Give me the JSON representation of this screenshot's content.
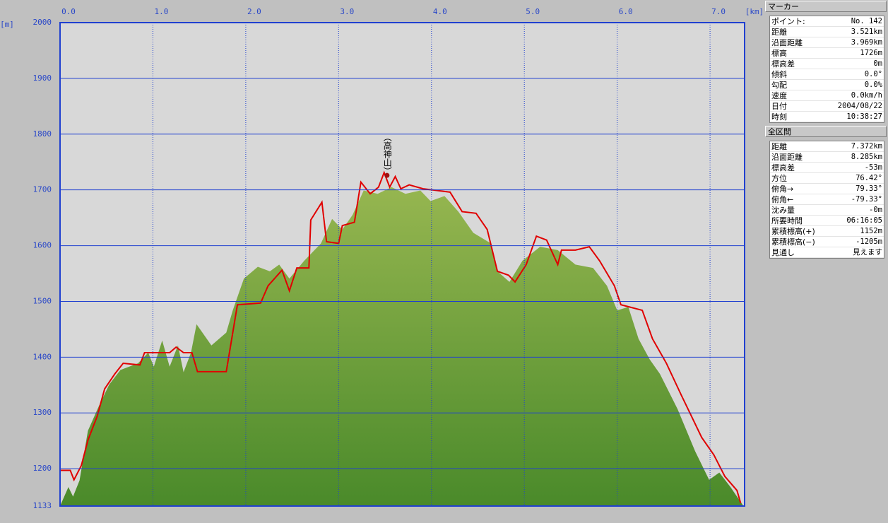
{
  "chart_data": {
    "type": "elevation-profile",
    "x_label": "[km]",
    "y_label": "[m]",
    "xlim": [
      0,
      7.372
    ],
    "ylim": [
      1133,
      2000
    ],
    "xticks": [
      {
        "value": 0,
        "label": "0.0"
      },
      {
        "value": 1,
        "label": "1.0"
      },
      {
        "value": 2,
        "label": "2.0"
      },
      {
        "value": 3,
        "label": "3.0"
      },
      {
        "value": 4,
        "label": "4.0"
      },
      {
        "value": 5,
        "label": "5.0"
      },
      {
        "value": 6,
        "label": "6.0"
      },
      {
        "value": 7,
        "label": "7.0"
      }
    ],
    "yticks": [
      1133,
      1200,
      1300,
      1400,
      1500,
      1600,
      1700,
      1800,
      1900,
      2000
    ],
    "grid": true,
    "series": [
      {
        "type": "area",
        "color": "#6f9a3a",
        "x": [
          0,
          0.09,
          0.14,
          0.21,
          0.3,
          0.42,
          0.53,
          0.65,
          0.84,
          0.95,
          1.01,
          1.1,
          1.18,
          1.27,
          1.33,
          1.41,
          1.47,
          1.63,
          1.79,
          1.86,
          1.98,
          2.13,
          2.26,
          2.36,
          2.47,
          2.63,
          2.81,
          2.93,
          3.04,
          3.15,
          3.27,
          3.42,
          3.57,
          3.72,
          3.88,
          3.99,
          4.14,
          4.29,
          4.45,
          4.64,
          4.71,
          4.84,
          4.98,
          5.17,
          5.36,
          5.55,
          5.74,
          5.89,
          6.0,
          6.12,
          6.23,
          6.35,
          6.46,
          6.65,
          6.84,
          6.99,
          7.1,
          7.22,
          7.36
        ],
        "values": [
          1133,
          1167,
          1150,
          1179,
          1268,
          1313,
          1351,
          1377,
          1389,
          1408,
          1383,
          1430,
          1383,
          1421,
          1373,
          1408,
          1459,
          1421,
          1444,
          1484,
          1541,
          1562,
          1554,
          1566,
          1541,
          1573,
          1604,
          1648,
          1629,
          1655,
          1699,
          1693,
          1705,
          1693,
          1699,
          1680,
          1689,
          1661,
          1623,
          1604,
          1554,
          1535,
          1573,
          1598,
          1592,
          1566,
          1560,
          1528,
          1484,
          1490,
          1433,
          1396,
          1370,
          1307,
          1231,
          1180,
          1193,
          1167,
          1133
        ]
      },
      {
        "type": "line",
        "color": "#e00000",
        "x": [
          0,
          0.11,
          0.15,
          0.23,
          0.3,
          0.4,
          0.48,
          0.59,
          0.68,
          0.86,
          0.91,
          1.18,
          1.25,
          1.33,
          1.42,
          1.48,
          1.79,
          1.91,
          2.16,
          2.24,
          2.39,
          2.47,
          2.55,
          2.68,
          2.7,
          2.82,
          2.87,
          3.0,
          3.04,
          3.17,
          3.24,
          3.34,
          3.43,
          3.49,
          3.55,
          3.61,
          3.67,
          3.76,
          3.91,
          4.06,
          4.2,
          4.33,
          4.48,
          4.6,
          4.71,
          4.83,
          4.9,
          5.02,
          5.13,
          5.24,
          5.36,
          5.4,
          5.55,
          5.7,
          5.81,
          5.97,
          6.04,
          6.27,
          6.38,
          6.53,
          6.69,
          6.8,
          6.91,
          7.04,
          7.16,
          7.29,
          7.33
        ],
        "values": [
          1197,
          1197,
          1180,
          1206,
          1251,
          1294,
          1343,
          1370,
          1389,
          1386,
          1408,
          1408,
          1418,
          1408,
          1408,
          1374,
          1374,
          1494,
          1497,
          1528,
          1556,
          1519,
          1560,
          1560,
          1646,
          1678,
          1607,
          1604,
          1636,
          1642,
          1714,
          1693,
          1705,
          1731,
          1705,
          1724,
          1702,
          1709,
          1702,
          1699,
          1696,
          1661,
          1658,
          1629,
          1554,
          1547,
          1535,
          1566,
          1617,
          1610,
          1566,
          1592,
          1592,
          1598,
          1573,
          1528,
          1494,
          1484,
          1433,
          1389,
          1332,
          1294,
          1256,
          1225,
          1186,
          1161,
          1138
        ]
      }
    ],
    "marker": {
      "x": 3.521,
      "y": 1726,
      "label": "（高神山）",
      "color": "#a01010"
    }
  },
  "marker_panel": {
    "title": "マーカー",
    "rows": [
      [
        "ポイント:",
        "No. 142"
      ],
      [
        "距離",
        "3.521km"
      ],
      [
        "沿面距離",
        "3.969km"
      ],
      [
        "標高",
        "1726m"
      ],
      [
        "標高差",
        "0m"
      ],
      [
        "傾斜",
        "0.0°"
      ],
      [
        "勾配",
        "0.0%"
      ],
      [
        "速度",
        "0.0km/h"
      ],
      [
        "日付",
        "2004/08/22"
      ],
      [
        "時刻",
        "10:38:27"
      ]
    ]
  },
  "total_panel": {
    "title": "全区間",
    "rows": [
      [
        "距離",
        "7.372km"
      ],
      [
        "沿面距離",
        "8.285km"
      ],
      [
        "標高差",
        "-53m"
      ],
      [
        "方位",
        "76.42°"
      ],
      [
        "俯角→",
        "79.33°"
      ],
      [
        "俯角←",
        "-79.33°"
      ],
      [
        "沈み量",
        "-0m"
      ],
      [
        "所要時間",
        "06:16:05"
      ],
      [
        "累積標高(+)",
        "1152m"
      ],
      [
        "累積標高(−)",
        "-1205m"
      ],
      [
        "見通し",
        "見えます"
      ]
    ]
  }
}
